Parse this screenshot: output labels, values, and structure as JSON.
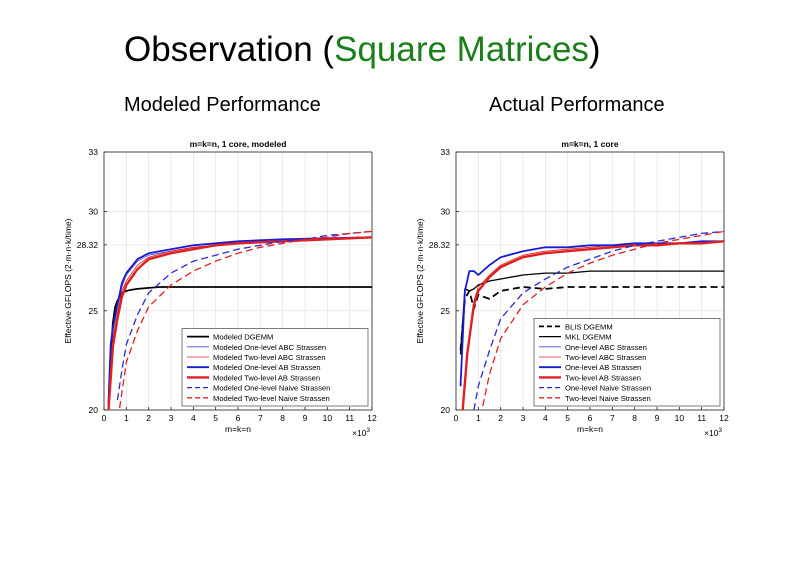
{
  "slide": {
    "title_prefix": "Observation (",
    "title_accent": "Square Matrices",
    "title_suffix": ")",
    "accent_color": "#1a7f1a",
    "subtitle_left": "Modeled Performance",
    "subtitle_right": "Actual Performance"
  },
  "chart_data": [
    {
      "type": "line",
      "title": "m=k=n, 1 core, modeled",
      "xlabel": "m=k=n",
      "xscale_label": "×10",
      "xscale_exp": "3",
      "ylabel": "Effective GFLOPS (2·m·n·k/time)",
      "xlim": [
        0,
        12000
      ],
      "ylim": [
        20,
        33
      ],
      "xticks": [
        0,
        1000,
        2000,
        3000,
        4000,
        5000,
        6000,
        7000,
        8000,
        9000,
        10000,
        11000,
        12000
      ],
      "xtick_labels": [
        "0",
        "1",
        "2",
        "3",
        "4",
        "5",
        "6",
        "7",
        "8",
        "9",
        "10",
        "11",
        "12"
      ],
      "yticks": [
        20,
        25,
        28.32,
        30,
        33
      ],
      "ytick_labels": [
        "20",
        "25",
        "28.32",
        "30",
        "33"
      ],
      "grid": true,
      "legend_position": "bottom-right",
      "series": [
        {
          "name": "Modeled DGEMM",
          "color": "#000000",
          "dash": "solid",
          "width": 1.8,
          "x": [
            200,
            300,
            400,
            500,
            600,
            800,
            1000,
            1200,
            1500,
            2000,
            2500,
            3000,
            4000,
            5000,
            6000,
            7000,
            8000,
            9000,
            10000,
            11000,
            12000
          ],
          "y": [
            20.2,
            22.8,
            24.4,
            25.2,
            25.5,
            25.9,
            26.0,
            26.05,
            26.1,
            26.15,
            26.2,
            26.2,
            26.2,
            26.2,
            26.2,
            26.2,
            26.2,
            26.2,
            26.2,
            26.2,
            26.2
          ]
        },
        {
          "name": "Modeled One-level ABC Strassen",
          "color": "#4a4ae0",
          "dash": "solid",
          "width": 0.8,
          "x": [
            200,
            300,
            400,
            600,
            800,
            1000,
            1500,
            2000,
            3000,
            4000,
            5000,
            6000,
            8000,
            10000,
            12000
          ],
          "y": [
            20.5,
            23.5,
            24.2,
            25.2,
            26.2,
            26.8,
            27.5,
            27.8,
            28.0,
            28.2,
            28.3,
            28.4,
            28.5,
            28.6,
            28.7
          ]
        },
        {
          "name": "Modeled Two-level ABC Strassen",
          "color": "#e02020",
          "dash": "solid",
          "width": 0.8,
          "x": [
            200,
            300,
            400,
            600,
            800,
            1000,
            1500,
            2000,
            3000,
            4000,
            5000,
            6000,
            8000,
            10000,
            12000
          ],
          "y": [
            20.1,
            22.0,
            23.6,
            24.9,
            26.0,
            26.5,
            27.3,
            27.7,
            28.0,
            28.2,
            28.3,
            28.4,
            28.5,
            28.6,
            28.7
          ]
        },
        {
          "name": "Modeled One-level AB Strassen",
          "color": "#1a1ad0",
          "dash": "solid",
          "width": 1.8,
          "x": [
            200,
            300,
            400,
            600,
            800,
            1000,
            1500,
            2000,
            3000,
            4000,
            5000,
            6000,
            8000,
            10000,
            12000
          ],
          "y": [
            20.4,
            23.3,
            24.1,
            25.3,
            26.4,
            26.9,
            27.6,
            27.9,
            28.1,
            28.3,
            28.4,
            28.5,
            28.6,
            28.65,
            28.7
          ]
        },
        {
          "name": "Modeled Two-level AB Strassen",
          "color": "#e02020",
          "dash": "solid",
          "width": 2.4,
          "x": [
            200,
            300,
            400,
            600,
            800,
            1000,
            1500,
            2000,
            3000,
            4000,
            5000,
            6000,
            8000,
            10000,
            12000
          ],
          "y": [
            20.0,
            21.6,
            23.2,
            24.6,
            25.7,
            26.3,
            27.1,
            27.6,
            27.9,
            28.1,
            28.3,
            28.4,
            28.5,
            28.6,
            28.7
          ]
        },
        {
          "name": "Modeled One-level Naive Strassen",
          "color": "#2a2ad8",
          "dash": "dash",
          "width": 1.3,
          "x": [
            600,
            800,
            1000,
            1500,
            2000,
            3000,
            4000,
            5000,
            6000,
            7000,
            8000,
            9000,
            10000,
            11000,
            12000
          ],
          "y": [
            20.5,
            22.0,
            23.3,
            24.8,
            25.9,
            26.9,
            27.5,
            27.8,
            28.1,
            28.3,
            28.5,
            28.6,
            28.8,
            28.9,
            29.0
          ]
        },
        {
          "name": "Modeled Two-level Naive Strassen",
          "color": "#e02020",
          "dash": "dash",
          "width": 1.3,
          "x": [
            700,
            1000,
            1500,
            2000,
            3000,
            4000,
            5000,
            6000,
            7000,
            8000,
            9000,
            10000,
            11000,
            12000
          ],
          "y": [
            20.1,
            22.4,
            24.0,
            25.2,
            26.3,
            27.0,
            27.5,
            27.9,
            28.2,
            28.4,
            28.6,
            28.7,
            28.9,
            29.0
          ]
        }
      ]
    },
    {
      "type": "line",
      "title": "m=k=n, 1 core",
      "xlabel": "m=k=n",
      "xscale_label": "×10",
      "xscale_exp": "3",
      "ylabel": "Effective GFLOPS (2·m·n·k/time)",
      "xlim": [
        0,
        12000
      ],
      "ylim": [
        20,
        33
      ],
      "xticks": [
        0,
        1000,
        2000,
        3000,
        4000,
        5000,
        6000,
        7000,
        8000,
        9000,
        10000,
        11000,
        12000
      ],
      "xtick_labels": [
        "0",
        "1",
        "2",
        "3",
        "4",
        "5",
        "6",
        "7",
        "8",
        "9",
        "10",
        "11",
        "12"
      ],
      "yticks": [
        20,
        25,
        28.32,
        30,
        33
      ],
      "ytick_labels": [
        "20",
        "25",
        "28.32",
        "30",
        "33"
      ],
      "grid": true,
      "legend_position": "bottom-right",
      "series": [
        {
          "name": "BLIS DGEMM",
          "color": "#000000",
          "dash": "dash",
          "width": 1.8,
          "x": [
            200,
            400,
            600,
            800,
            1000,
            1500,
            2000,
            3000,
            4000,
            5000,
            6000,
            7000,
            8000,
            9000,
            10000,
            11000,
            12000
          ],
          "y": [
            23.0,
            25.6,
            26.0,
            25.1,
            25.8,
            25.6,
            26.0,
            26.2,
            26.1,
            26.2,
            26.2,
            26.2,
            26.2,
            26.2,
            26.2,
            26.2,
            26.2
          ]
        },
        {
          "name": "MKL DGEMM",
          "color": "#000000",
          "dash": "solid",
          "width": 1.3,
          "x": [
            200,
            400,
            600,
            800,
            1000,
            1500,
            2000,
            3000,
            4000,
            5000,
            6000,
            7000,
            8000,
            9000,
            10000,
            11000,
            12000
          ],
          "y": [
            22.8,
            26.1,
            26.0,
            26.1,
            26.3,
            26.5,
            26.6,
            26.8,
            26.9,
            26.9,
            27.0,
            27.0,
            27.0,
            27.0,
            27.0,
            27.0,
            27.0
          ]
        },
        {
          "name": "One-level ABC Strassen",
          "color": "#4a4ae0",
          "dash": "solid",
          "width": 0.8,
          "x": [
            200,
            400,
            600,
            800,
            1000,
            1500,
            2000,
            3000,
            4000,
            5000,
            6000,
            7000,
            8000,
            9000,
            10000,
            11000,
            12000
          ],
          "y": [
            21.2,
            26.0,
            27.0,
            27.0,
            26.8,
            27.3,
            27.7,
            28.0,
            28.2,
            28.2,
            28.3,
            28.3,
            28.4,
            28.4,
            28.4,
            28.5,
            28.5
          ]
        },
        {
          "name": "Two-level ABC Strassen",
          "color": "#e02020",
          "dash": "solid",
          "width": 0.8,
          "x": [
            300,
            500,
            800,
            1000,
            1500,
            2000,
            3000,
            4000,
            5000,
            6000,
            7000,
            8000,
            9000,
            10000,
            11000,
            12000
          ],
          "y": [
            20.2,
            23.0,
            25.5,
            26.2,
            26.8,
            27.3,
            27.8,
            28.0,
            28.1,
            28.2,
            28.3,
            28.3,
            28.4,
            28.4,
            28.5,
            28.5
          ]
        },
        {
          "name": "One-level AB Strassen",
          "color": "#1a1ad0",
          "dash": "solid",
          "width": 1.8,
          "x": [
            200,
            400,
            600,
            800,
            1000,
            1500,
            2000,
            3000,
            4000,
            5000,
            6000,
            7000,
            8000,
            9000,
            10000,
            11000,
            12000
          ],
          "y": [
            21.2,
            26.0,
            27.0,
            27.0,
            26.8,
            27.3,
            27.7,
            28.0,
            28.2,
            28.2,
            28.3,
            28.3,
            28.4,
            28.4,
            28.4,
            28.5,
            28.5
          ]
        },
        {
          "name": "Two-level AB Strassen",
          "color": "#e02020",
          "dash": "solid",
          "width": 2.4,
          "x": [
            300,
            500,
            800,
            1000,
            1500,
            2000,
            3000,
            4000,
            5000,
            6000,
            7000,
            8000,
            9000,
            10000,
            11000,
            12000
          ],
          "y": [
            20.0,
            22.8,
            25.3,
            26.0,
            26.7,
            27.2,
            27.7,
            27.9,
            28.0,
            28.1,
            28.2,
            28.3,
            28.3,
            28.4,
            28.4,
            28.5
          ]
        },
        {
          "name": "One-level Naive Strassen",
          "color": "#2a2ad8",
          "dash": "dash",
          "width": 1.3,
          "x": [
            800,
            1000,
            1500,
            2000,
            3000,
            4000,
            5000,
            6000,
            7000,
            8000,
            9000,
            10000,
            11000,
            12000
          ],
          "y": [
            20.0,
            21.2,
            23.0,
            24.6,
            25.9,
            26.6,
            27.2,
            27.6,
            28.0,
            28.3,
            28.5,
            28.7,
            28.9,
            29.0
          ]
        },
        {
          "name": "Two-level Naive Strassen",
          "color": "#e02020",
          "dash": "dash",
          "width": 1.3,
          "x": [
            1200,
            1500,
            2000,
            3000,
            4000,
            5000,
            6000,
            7000,
            8000,
            9000,
            10000,
            11000,
            12000
          ],
          "y": [
            20.2,
            21.8,
            23.6,
            25.3,
            26.2,
            26.9,
            27.4,
            27.8,
            28.1,
            28.4,
            28.6,
            28.8,
            29.0
          ]
        }
      ]
    }
  ]
}
